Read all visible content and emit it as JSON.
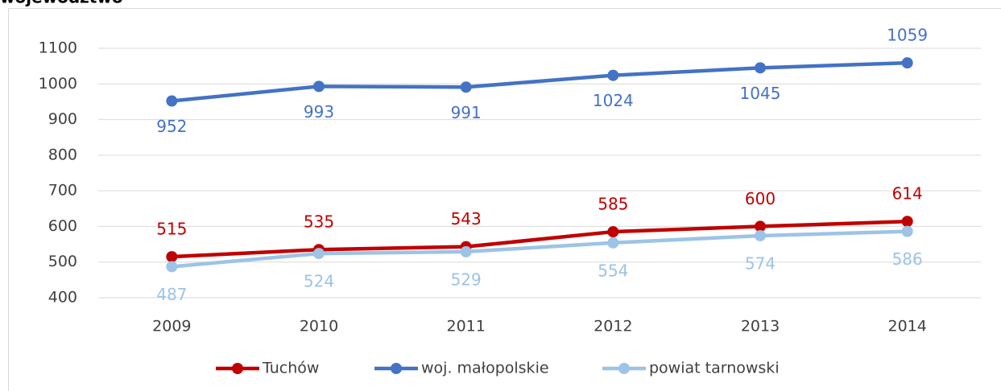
{
  "chart_data": {
    "type": "line",
    "title": "województwo",
    "categories": [
      "2009",
      "2010",
      "2011",
      "2012",
      "2013",
      "2014"
    ],
    "series": [
      {
        "name": "Tuchów",
        "color": "#c00000",
        "values": [
          515,
          535,
          543,
          585,
          600,
          614
        ]
      },
      {
        "name": "woj. małopolskie",
        "color": "#4472c4",
        "values": [
          952,
          993,
          991,
          1024,
          1045,
          1059
        ]
      },
      {
        "name": "powiat tarnowski",
        "color": "#9dc3e6",
        "values": [
          487,
          524,
          529,
          554,
          574,
          586
        ]
      }
    ],
    "ylim": [
      400,
      1100
    ],
    "yticks": [
      400,
      500,
      600,
      700,
      800,
      900,
      1000,
      1100
    ],
    "grid": true,
    "legend": "bottom"
  }
}
